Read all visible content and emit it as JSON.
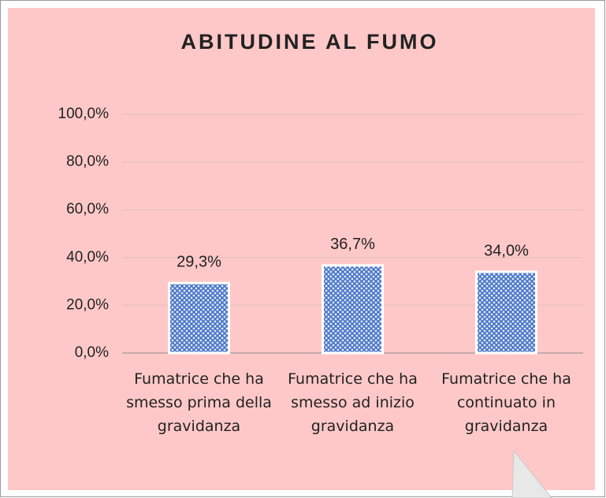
{
  "chart_data": {
    "type": "bar",
    "title": "ABITUDINE AL FUMO",
    "categories": [
      "Fumatrice che ha smesso prima della gravidanza",
      "Fumatrice che ha smesso ad inizio gravidanza",
      "Fumatrice che ha continuato in gravidanza"
    ],
    "values": [
      29.3,
      36.7,
      34.0
    ],
    "value_labels": [
      "29,3%",
      "36,7%",
      "34,0%"
    ],
    "color": "#4472c4",
    "ylim": [
      0,
      100
    ],
    "yticks": [
      {
        "value": 0,
        "label": "0,0%"
      },
      {
        "value": 20,
        "label": "20,0%"
      },
      {
        "value": 40,
        "label": "40,0%"
      },
      {
        "value": 60,
        "label": "60,0%"
      },
      {
        "value": 80,
        "label": "80,0%"
      },
      {
        "value": 100,
        "label": "100,0%"
      }
    ],
    "grid": true
  }
}
